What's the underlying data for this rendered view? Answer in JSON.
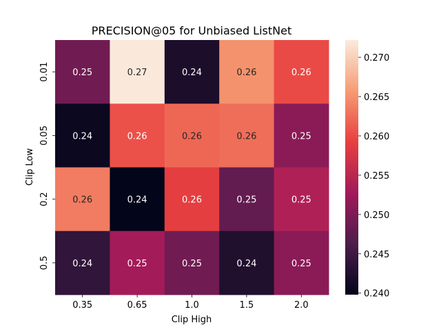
{
  "chart_data": {
    "type": "heatmap",
    "title": "PRECISION@05 for Unbiased ListNet",
    "xlabel": "Clip High",
    "ylabel": "Clip Low",
    "x_categories": [
      "0.35",
      "0.65",
      "1.0",
      "1.5",
      "2.0"
    ],
    "y_categories": [
      "0.01",
      "0.05",
      "0.2",
      "0.5"
    ],
    "values": [
      [
        0.249,
        0.272,
        0.242,
        0.265,
        0.26
      ],
      [
        0.2405,
        0.2605,
        0.262,
        0.2625,
        0.251
      ],
      [
        0.2635,
        0.2398,
        0.259,
        0.248,
        0.254
      ],
      [
        0.244,
        0.253,
        0.249,
        0.2425,
        0.251
      ]
    ],
    "cell_labels": [
      [
        "0.25",
        "0.27",
        "0.24",
        "0.26",
        "0.26"
      ],
      [
        "0.24",
        "0.26",
        "0.26",
        "0.26",
        "0.25"
      ],
      [
        "0.26",
        "0.24",
        "0.26",
        "0.25",
        "0.25"
      ],
      [
        "0.24",
        "0.25",
        "0.25",
        "0.24",
        "0.25"
      ]
    ],
    "colorbar": {
      "range": [
        0.2398,
        0.2722
      ],
      "ticks": [
        "0.240",
        "0.245",
        "0.250",
        "0.255",
        "0.260",
        "0.265",
        "0.270"
      ],
      "colormap": "rocket",
      "stops": [
        "#03051a",
        "#4c1d4b",
        "#a11a5b",
        "#e83f3f",
        "#f69c73",
        "#faebdd"
      ]
    },
    "legend": "colorbar-right",
    "grid": false
  }
}
